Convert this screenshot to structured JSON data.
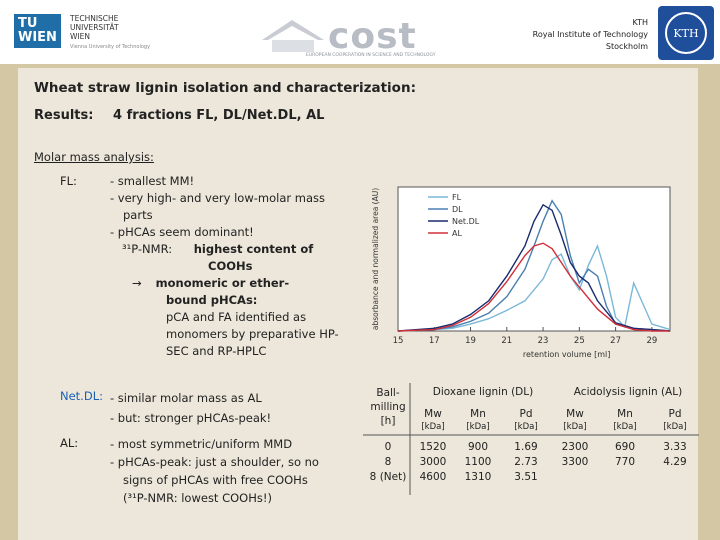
{
  "header": {
    "tu_logo": {
      "box_line1": "TU",
      "box_line2": "WIEN",
      "line1": "TECHNISCHE",
      "line2": "UNIVERSITÄT",
      "line3": "WIEN",
      "line4": "Vienna University of Technology"
    },
    "cost_logo": {
      "word": "cost",
      "tagline": "EUROPEAN COOPERATION IN SCIENCE AND TECHNOLOGY"
    },
    "kth": {
      "line1": "KTH",
      "line2": "Royal Institute of Technology",
      "line3": "Stockholm",
      "seal_text": "KTH"
    }
  },
  "title": "Wheat straw lignin isolation and characterization:",
  "results": {
    "label": "Results:",
    "value": "4 fractions FL, DL/Net.DL, AL"
  },
  "molar_heading": "Molar mass analysis:",
  "fl": {
    "label": "FL:",
    "b1": "- smallest MM!",
    "b2a": "- very high- and very low-molar mass",
    "b2b": "parts",
    "b3": "- pHCAs seem dominant!",
    "nmr_prefix": "³¹P-NMR:",
    "nmr_bold": "highest content of",
    "nmr_bold2": "COOHs",
    "arrow": "→",
    "mono1": "monomeric or ether-",
    "mono2": "bound pHCAs:",
    "mono3": "pCA and FA identified as",
    "mono4": "monomers by preparative HP-",
    "mono5": "SEC and RP-HPLC"
  },
  "netdl": {
    "label": "Net.DL:",
    "b1": "- similar molar mass as AL",
    "b2": "- but: stronger pHCAs-peak!"
  },
  "al": {
    "label": "AL:",
    "b1": "- most symmetric/uniform MMD",
    "b2": "- pHCAs-peak: just a shoulder, so no",
    "b3": "signs of pHCAs with free COOHs",
    "b4": "(³¹P-NMR: lowest COOHs!)"
  },
  "table": {
    "ball_header": [
      "Ball-",
      "milling",
      "[h]"
    ],
    "dioxane_header": "Dioxane lignin (DL)",
    "acido_header": "Acidolysis lignin (AL)",
    "col_mw": "Mw",
    "col_mn": "Mn",
    "col_pd": "Pd",
    "unit": "[kDa]",
    "ball_values": [
      "0",
      "8",
      "8 (Net)"
    ],
    "dl_mw": [
      "1520",
      "3000",
      "4600"
    ],
    "dl_mn": [
      "900",
      "1100",
      "1310"
    ],
    "dl_pd": [
      "1.69",
      "2.73",
      "3.51"
    ],
    "al_mw": [
      "2300",
      "3300"
    ],
    "al_mn": [
      "690",
      "770"
    ],
    "al_pd": [
      "3.33",
      "4.29"
    ]
  },
  "chart_data": {
    "type": "line",
    "xlabel": "retention volume [ml]",
    "ylabel": "absorbance and normalized area (AU)",
    "xlim": [
      15,
      30
    ],
    "ylim": [
      0,
      1.05
    ],
    "x_ticks": [
      15,
      17,
      19,
      21,
      23,
      25,
      27,
      29
    ],
    "grid": false,
    "legend": "top-left",
    "series": [
      {
        "name": "FL",
        "color": "#7ab8d8",
        "x": [
          15,
          17,
          18,
          19,
          20,
          21,
          22,
          23,
          23.5,
          24,
          24.5,
          25,
          25.5,
          26,
          26.5,
          27,
          27.5,
          28,
          29,
          30
        ],
        "y": [
          0,
          0.01,
          0.02,
          0.05,
          0.09,
          0.15,
          0.22,
          0.38,
          0.52,
          0.56,
          0.4,
          0.3,
          0.48,
          0.62,
          0.4,
          0.1,
          0.03,
          0.35,
          0.05,
          0.01
        ]
      },
      {
        "name": "DL",
        "color": "#4a7fb0",
        "x": [
          15,
          17,
          18,
          19,
          20,
          21,
          22,
          22.5,
          23,
          23.5,
          24,
          24.5,
          25,
          25.5,
          26,
          26.5,
          27,
          28,
          29,
          30
        ],
        "y": [
          0,
          0.01,
          0.03,
          0.07,
          0.13,
          0.25,
          0.45,
          0.62,
          0.8,
          0.95,
          0.85,
          0.55,
          0.35,
          0.45,
          0.4,
          0.18,
          0.05,
          0.02,
          0.01,
          0.0
        ]
      },
      {
        "name": "Net.DL",
        "color": "#1a2a6e",
        "x": [
          15,
          17,
          18,
          19,
          20,
          21,
          22,
          22.5,
          23,
          23.5,
          24,
          24.5,
          25,
          25.5,
          26,
          27,
          28,
          29,
          30
        ],
        "y": [
          0,
          0.02,
          0.05,
          0.12,
          0.22,
          0.4,
          0.62,
          0.8,
          0.92,
          0.88,
          0.7,
          0.5,
          0.4,
          0.35,
          0.22,
          0.06,
          0.02,
          0.01,
          0.0
        ]
      },
      {
        "name": "AL",
        "color": "#d0303a",
        "x": [
          15,
          17,
          18,
          19,
          20,
          21,
          22,
          22.5,
          23,
          23.5,
          24,
          24.5,
          25,
          26,
          27,
          28,
          29,
          30
        ],
        "y": [
          0,
          0.01,
          0.04,
          0.1,
          0.2,
          0.36,
          0.55,
          0.62,
          0.64,
          0.6,
          0.5,
          0.4,
          0.32,
          0.16,
          0.05,
          0.01,
          0.0,
          0.0
        ]
      }
    ]
  }
}
